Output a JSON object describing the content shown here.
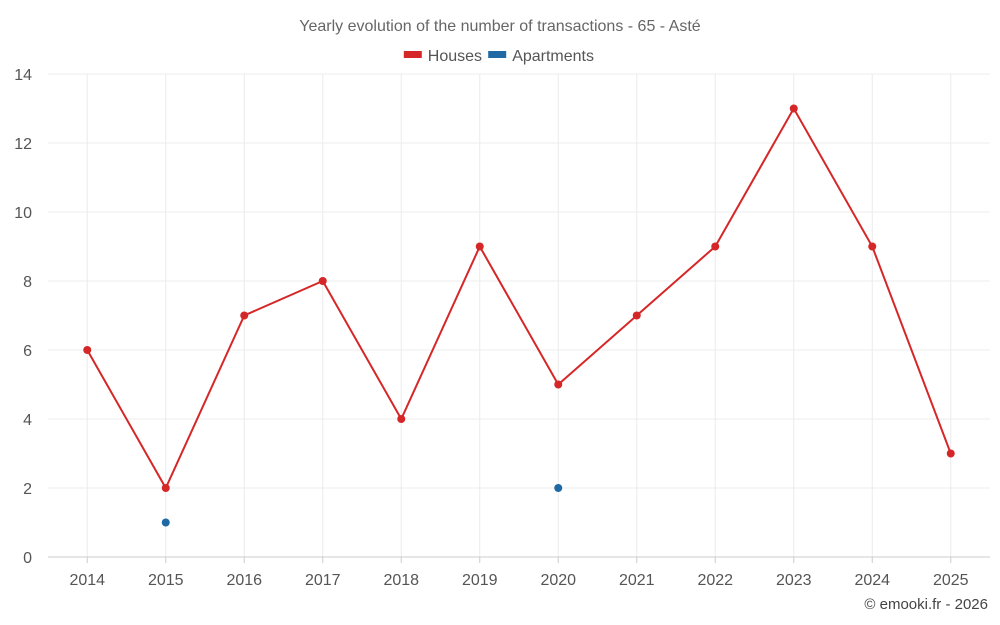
{
  "chart_data": {
    "type": "line",
    "title": "Yearly evolution of the number of transactions - 65 - Asté",
    "categories": [
      "2014",
      "2015",
      "2016",
      "2017",
      "2018",
      "2019",
      "2020",
      "2021",
      "2022",
      "2023",
      "2024",
      "2025"
    ],
    "series": [
      {
        "name": "Houses",
        "color": "#d62728",
        "values": [
          6,
          2,
          7,
          8,
          4,
          9,
          5,
          7,
          9,
          13,
          9,
          3
        ]
      },
      {
        "name": "Apartments",
        "color": "#1f6aa5",
        "values": [
          null,
          1,
          null,
          null,
          null,
          null,
          2,
          null,
          null,
          null,
          null,
          null
        ]
      }
    ],
    "ylim": [
      0,
      14
    ],
    "yticks": [
      0,
      2,
      4,
      6,
      8,
      10,
      12,
      14
    ],
    "xlabel": "",
    "ylabel": "",
    "legend": "top-center",
    "grid": true
  },
  "credit": "© emooki.fr - 2026"
}
